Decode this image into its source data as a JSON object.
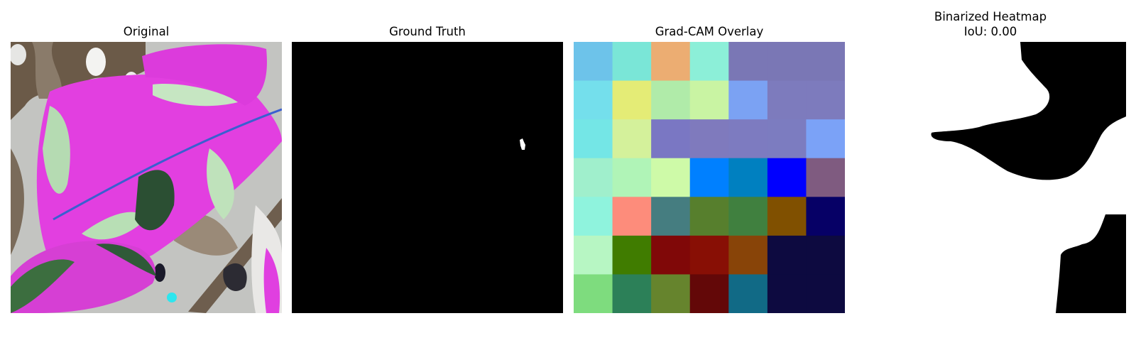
{
  "panels": {
    "original": {
      "title": "Original"
    },
    "ground_truth": {
      "title": "Ground Truth"
    },
    "gradcam": {
      "title": "Grad-CAM Overlay",
      "grid": [
        [
          "#6dc3ea",
          "#7ae6d7",
          "#ecad72",
          "#8cefd8",
          "#7a77b5",
          "#7a77b5",
          "#7a77b5"
        ],
        [
          "#74dfec",
          "#e4ec76",
          "#b0eba9",
          "#c9f4a3",
          "#7ba2f3",
          "#7d7bbd",
          "#7d7bbd"
        ],
        [
          "#74e6e6",
          "#d4f19b",
          "#7a77c3",
          "#7f7abd",
          "#7d7bc0",
          "#7c7cc0",
          "#7ba2f7"
        ],
        [
          "#a0efcc",
          "#b0f4b7",
          "#cefaa8",
          "#0080ff",
          "#0080c0",
          "#0000ff",
          "#7f5b80"
        ],
        [
          "#8ff3dd",
          "#fd8c7b",
          "#457d80",
          "#577f2d",
          "#40803f",
          "#805000",
          "#060066"
        ],
        [
          "#b7f6c3",
          "#407c00",
          "#800808",
          "#880f05",
          "#884408",
          "#0d0a40",
          "#0d0a40"
        ],
        [
          "#7edc7e",
          "#2c8058",
          "#66842d",
          "#630808",
          "#116a86",
          "#0d0a40",
          "#0d0a40"
        ]
      ]
    },
    "binarized": {
      "title_line1": "Binarized Heatmap",
      "title_line2": "IoU: 0.00"
    }
  }
}
